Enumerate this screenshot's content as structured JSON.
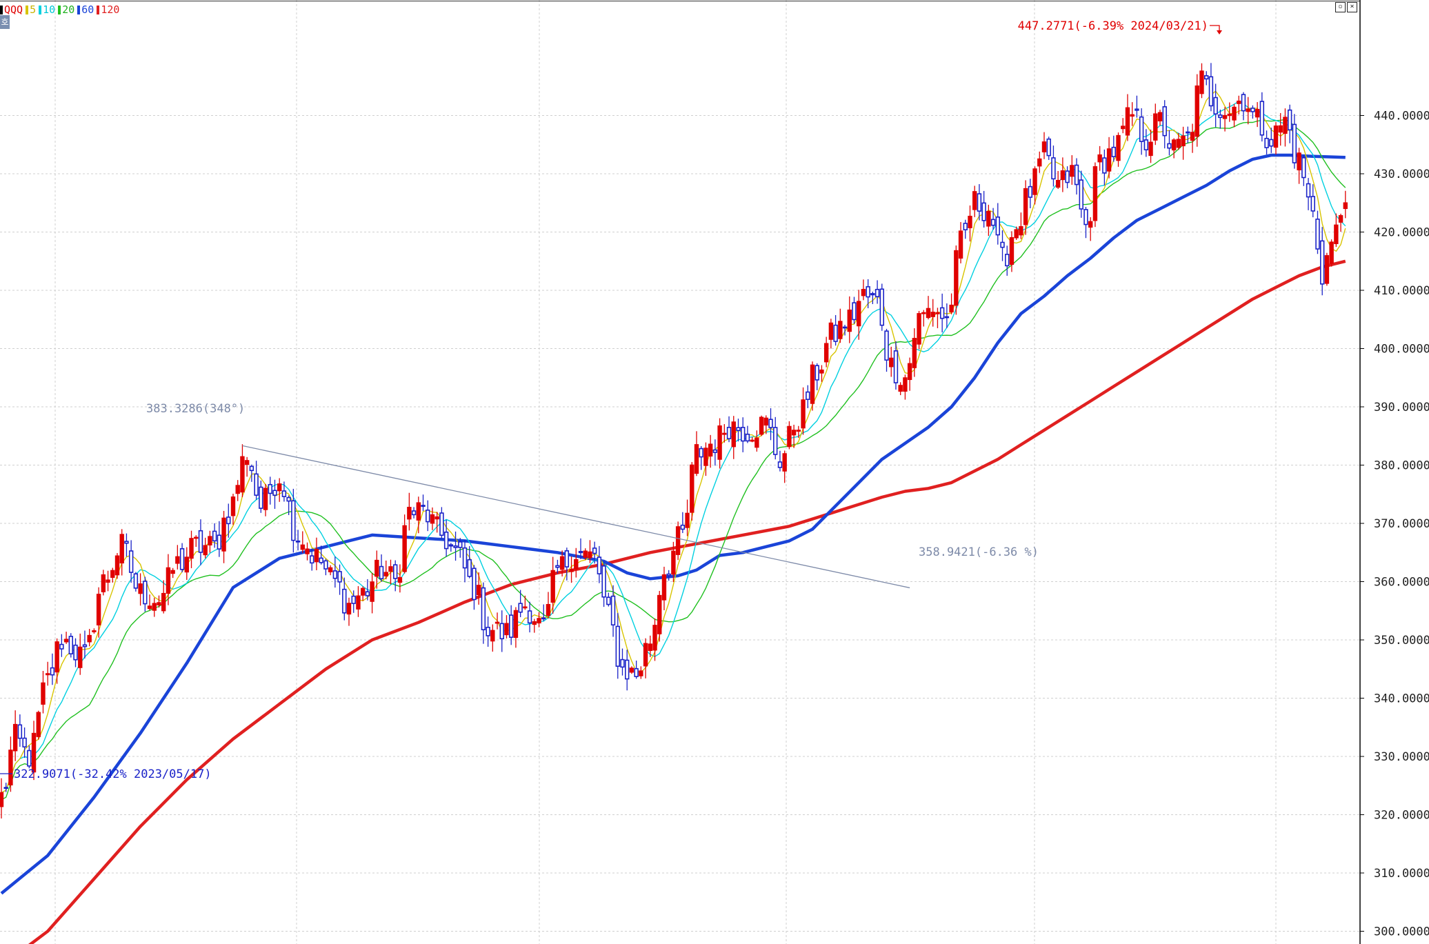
{
  "legend": [
    {
      "label": "QQQ",
      "color": "#e00000",
      "swatch": "#000000"
    },
    {
      "label": "5",
      "color": "#c8b400",
      "swatch": "#d8c400"
    },
    {
      "label": "10",
      "color": "#00c8d8",
      "swatch": "#00d0e0"
    },
    {
      "label": "20",
      "color": "#20b020",
      "swatch": "#20c020"
    },
    {
      "label": "60",
      "color": "#1a44d8",
      "swatch": "#1a44d8"
    },
    {
      "label": "120",
      "color": "#e02020",
      "swatch": "#e02020"
    }
  ],
  "window_buttons": [
    "restore-icon",
    "close-icon"
  ],
  "corner_tag": "호",
  "chart_data": {
    "type": "candlestick",
    "symbol": "QQQ",
    "ylim": [
      295,
      452
    ],
    "y_ticks": [
      "440.0000",
      "430.0000",
      "420.0000",
      "410.0000",
      "400.0000",
      "390.0000",
      "380.0000",
      "370.0000",
      "360.0000",
      "350.0000",
      "340.0000",
      "330.0000",
      "320.0000",
      "310.0000",
      "300.0000"
    ],
    "y_tick_values": [
      440,
      430,
      420,
      410,
      400,
      390,
      380,
      370,
      360,
      350,
      340,
      330,
      320,
      310,
      300
    ],
    "grid": true,
    "colors": {
      "up": "#e00000",
      "down": "#1a22c8",
      "ma5": "#d8c400",
      "ma10": "#00d0e0",
      "ma20": "#20c020",
      "ma60": "#1a44d8",
      "ma120": "#e02020",
      "trend": "#7d8aa8"
    },
    "anchors": [
      {
        "i": 0,
        "v": 323
      },
      {
        "i": 3,
        "v": 333
      },
      {
        "i": 6,
        "v": 330
      },
      {
        "i": 10,
        "v": 343
      },
      {
        "i": 13,
        "v": 350
      },
      {
        "i": 18,
        "v": 347
      },
      {
        "i": 22,
        "v": 360
      },
      {
        "i": 26,
        "v": 366
      },
      {
        "i": 30,
        "v": 358
      },
      {
        "i": 34,
        "v": 357
      },
      {
        "i": 38,
        "v": 363
      },
      {
        "i": 42,
        "v": 366
      },
      {
        "i": 46,
        "v": 366
      },
      {
        "i": 49,
        "v": 372
      },
      {
        "i": 53,
        "v": 382
      },
      {
        "i": 56,
        "v": 373
      },
      {
        "i": 60,
        "v": 378
      },
      {
        "i": 64,
        "v": 368
      },
      {
        "i": 68,
        "v": 364
      },
      {
        "i": 72,
        "v": 360
      },
      {
        "i": 75,
        "v": 356
      },
      {
        "i": 78,
        "v": 358
      },
      {
        "i": 82,
        "v": 362
      },
      {
        "i": 85,
        "v": 360
      },
      {
        "i": 88,
        "v": 372
      },
      {
        "i": 91,
        "v": 372
      },
      {
        "i": 95,
        "v": 368
      },
      {
        "i": 98,
        "v": 365
      },
      {
        "i": 102,
        "v": 359
      },
      {
        "i": 105,
        "v": 352
      },
      {
        "i": 109,
        "v": 351
      },
      {
        "i": 113,
        "v": 356
      },
      {
        "i": 117,
        "v": 352
      },
      {
        "i": 120,
        "v": 362
      },
      {
        "i": 124,
        "v": 365
      },
      {
        "i": 128,
        "v": 364
      },
      {
        "i": 131,
        "v": 354
      },
      {
        "i": 134,
        "v": 345
      },
      {
        "i": 137,
        "v": 344
      },
      {
        "i": 140,
        "v": 350
      },
      {
        "i": 143,
        "v": 362
      },
      {
        "i": 147,
        "v": 368
      },
      {
        "i": 150,
        "v": 382
      },
      {
        "i": 154,
        "v": 384
      },
      {
        "i": 157,
        "v": 387
      },
      {
        "i": 161,
        "v": 386
      },
      {
        "i": 165,
        "v": 387
      },
      {
        "i": 168,
        "v": 381
      },
      {
        "i": 172,
        "v": 388
      },
      {
        "i": 176,
        "v": 396
      },
      {
        "i": 179,
        "v": 402
      },
      {
        "i": 183,
        "v": 405
      },
      {
        "i": 186,
        "v": 409
      },
      {
        "i": 189,
        "v": 408
      },
      {
        "i": 192,
        "v": 397
      },
      {
        "i": 195,
        "v": 395
      },
      {
        "i": 198,
        "v": 405
      },
      {
        "i": 201,
        "v": 407
      },
      {
        "i": 204,
        "v": 405
      },
      {
        "i": 207,
        "v": 418
      },
      {
        "i": 210,
        "v": 425
      },
      {
        "i": 213,
        "v": 424
      },
      {
        "i": 216,
        "v": 415
      },
      {
        "i": 219,
        "v": 421
      },
      {
        "i": 222,
        "v": 427
      },
      {
        "i": 225,
        "v": 433
      },
      {
        "i": 228,
        "v": 428
      },
      {
        "i": 231,
        "v": 430
      },
      {
        "i": 234,
        "v": 421
      },
      {
        "i": 237,
        "v": 432
      },
      {
        "i": 240,
        "v": 434
      },
      {
        "i": 244,
        "v": 440
      },
      {
        "i": 247,
        "v": 436
      },
      {
        "i": 250,
        "v": 439
      },
      {
        "i": 253,
        "v": 434
      },
      {
        "i": 256,
        "v": 436
      },
      {
        "i": 259,
        "v": 446
      },
      {
        "i": 262,
        "v": 442
      },
      {
        "i": 265,
        "v": 441
      },
      {
        "i": 268,
        "v": 443
      },
      {
        "i": 271,
        "v": 439
      },
      {
        "i": 274,
        "v": 436
      },
      {
        "i": 277,
        "v": 439
      },
      {
        "i": 280,
        "v": 432
      },
      {
        "i": 283,
        "v": 423
      },
      {
        "i": 285,
        "v": 413
      },
      {
        "i": 287,
        "v": 418
      },
      {
        "i": 290,
        "v": 425
      }
    ],
    "ma60": [
      [
        0,
        306.5
      ],
      [
        10,
        313
      ],
      [
        20,
        323
      ],
      [
        30,
        334
      ],
      [
        40,
        346
      ],
      [
        50,
        359
      ],
      [
        60,
        364
      ],
      [
        70,
        366
      ],
      [
        80,
        368
      ],
      [
        90,
        367.5
      ],
      [
        100,
        367
      ],
      [
        110,
        366
      ],
      [
        120,
        365
      ],
      [
        130,
        363.5
      ],
      [
        135,
        361.5
      ],
      [
        140,
        360.5
      ],
      [
        146,
        361
      ],
      [
        150,
        362
      ],
      [
        155,
        364.5
      ],
      [
        160,
        365
      ],
      [
        165,
        366
      ],
      [
        170,
        367
      ],
      [
        175,
        369
      ],
      [
        180,
        373
      ],
      [
        185,
        377
      ],
      [
        190,
        381
      ],
      [
        200,
        386.5
      ],
      [
        205,
        390
      ],
      [
        210,
        395
      ],
      [
        215,
        401
      ],
      [
        220,
        406
      ],
      [
        225,
        409
      ],
      [
        230,
        412.5
      ],
      [
        235,
        415.5
      ],
      [
        240,
        419
      ],
      [
        245,
        422
      ],
      [
        250,
        424
      ],
      [
        255,
        426
      ],
      [
        260,
        428
      ],
      [
        265,
        430.5
      ],
      [
        270,
        432.5
      ],
      [
        274,
        433.2
      ],
      [
        278,
        433.2
      ],
      [
        283,
        433
      ],
      [
        290,
        432.8
      ]
    ],
    "ma120": [
      [
        0,
        294
      ],
      [
        10,
        300
      ],
      [
        20,
        309
      ],
      [
        30,
        318
      ],
      [
        40,
        326
      ],
      [
        50,
        333
      ],
      [
        60,
        339
      ],
      [
        70,
        345
      ],
      [
        80,
        350
      ],
      [
        90,
        353
      ],
      [
        100,
        356.5
      ],
      [
        110,
        359.5
      ],
      [
        120,
        361.5
      ],
      [
        130,
        363
      ],
      [
        140,
        365
      ],
      [
        150,
        366.5
      ],
      [
        160,
        368
      ],
      [
        170,
        369.5
      ],
      [
        180,
        372
      ],
      [
        190,
        374.5
      ],
      [
        195,
        375.5
      ],
      [
        200,
        376
      ],
      [
        205,
        377
      ],
      [
        210,
        379
      ],
      [
        215,
        381
      ],
      [
        220,
        383.5
      ],
      [
        225,
        386
      ],
      [
        230,
        388.5
      ],
      [
        235,
        391
      ],
      [
        240,
        393.5
      ],
      [
        245,
        396
      ],
      [
        250,
        398.5
      ],
      [
        255,
        401
      ],
      [
        260,
        403.5
      ],
      [
        265,
        406
      ],
      [
        270,
        408.5
      ],
      [
        275,
        410.5
      ],
      [
        280,
        412.5
      ],
      [
        285,
        414
      ],
      [
        290,
        415
      ]
    ],
    "trendline": {
      "from": {
        "i": 52,
        "v": 383.3286
      },
      "to": {
        "i": 196,
        "v": 358.9421
      }
    },
    "annotations": [
      {
        "name": "high-annotation",
        "text": "447.2771(-6.39% 2024/03/21)",
        "color": "#e00000"
      },
      {
        "name": "trend-start-annotation",
        "text": "383.3286(348°)",
        "color": "#7d8aa8"
      },
      {
        "name": "trend-end-annotation",
        "text": "358.9421(-6.36 %)",
        "color": "#7d8aa8"
      },
      {
        "name": "low-annotation",
        "text": "322.9071(-32.42% 2023/05/17)",
        "color": "#1a22c8"
      }
    ]
  }
}
